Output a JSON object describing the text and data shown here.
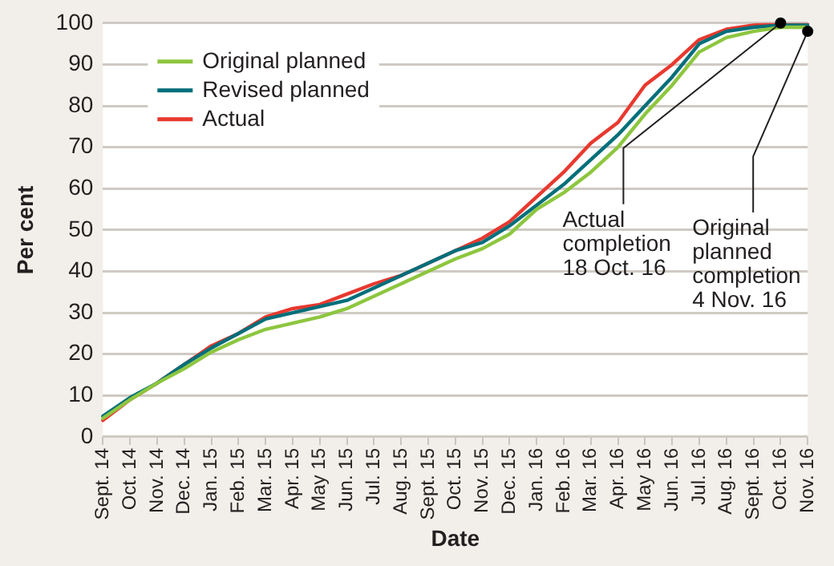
{
  "chart_data": {
    "type": "line",
    "xlabel": "Date",
    "ylabel": "Per cent",
    "categories": [
      "Sept. 14",
      "Oct. 14",
      "Nov. 14",
      "Dec. 14",
      "Jan. 15",
      "Feb. 15",
      "Mar. 15",
      "Apr. 15",
      "May 15",
      "Jun. 15",
      "Jul. 15",
      "Aug. 15",
      "Sept. 15",
      "Oct. 15",
      "Nov. 15",
      "Dec. 15",
      "Jan. 16",
      "Feb. 16",
      "Mar. 16",
      "Apr. 16",
      "May 16",
      "Jun. 16",
      "Jul. 16",
      "Aug. 16",
      "Sept. 16",
      "Oct. 16",
      "Nov. 16"
    ],
    "series": [
      {
        "name": "Original planned",
        "color": "#8dc63f",
        "values": [
          4.5,
          9,
          13,
          16.5,
          20.5,
          23.5,
          26,
          27.5,
          29,
          31,
          34,
          37,
          40,
          43,
          45.5,
          49,
          55,
          59,
          64,
          70,
          78,
          85,
          93,
          96.5,
          98,
          99,
          99
        ]
      },
      {
        "name": "Revised planned",
        "color": "#006f7a",
        "values": [
          5,
          9.5,
          13,
          17.5,
          21.5,
          25,
          28.5,
          30,
          31.5,
          33,
          36,
          39,
          42,
          45,
          47,
          51,
          56,
          61,
          67,
          73,
          80,
          87,
          95,
          98,
          99,
          99.5,
          99.5
        ]
      },
      {
        "name": "Actual",
        "color": "#e8392f",
        "values": [
          4,
          9,
          13,
          17.5,
          22,
          25,
          29,
          31,
          32,
          34.5,
          37,
          39,
          42,
          45,
          48,
          52,
          58,
          64,
          71,
          76,
          85,
          90,
          96,
          98.5,
          99.5,
          100,
          100
        ]
      }
    ],
    "ylim": [
      0,
      100
    ],
    "yticks": [
      0,
      10,
      20,
      30,
      40,
      50,
      60,
      70,
      80,
      90,
      100
    ],
    "grid": "y",
    "legend": "top left",
    "marker": "none",
    "line_style": "solid",
    "annotations": [
      {
        "text": "Actual\ncompletion\n18 Oct. 16",
        "x": "Oct. 16",
        "y": 100
      },
      {
        "text": "Original\nplanned\ncompletion\n4 Nov. 16",
        "x": "Nov. 16",
        "y": 98
      }
    ]
  }
}
